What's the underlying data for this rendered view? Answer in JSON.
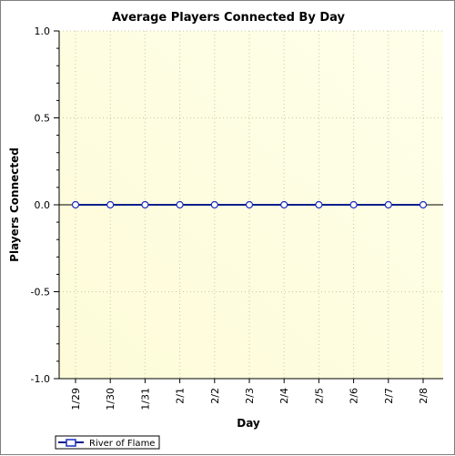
{
  "chart_data": {
    "type": "line",
    "title": "Average Players Connected By Day",
    "xlabel": "Day",
    "ylabel": "Players Connected",
    "categories": [
      "1/29",
      "1/30",
      "1/31",
      "2/1",
      "2/2",
      "2/3",
      "2/4",
      "2/5",
      "2/6",
      "2/7",
      "2/8"
    ],
    "series": [
      {
        "name": "River of Flame",
        "values": [
          0,
          0,
          0,
          0,
          0,
          0,
          0,
          0,
          0,
          0,
          0
        ]
      }
    ],
    "ylim": [
      -1.0,
      1.0
    ],
    "yticks": [
      1.0,
      0.5,
      0.0,
      -0.5,
      -1.0
    ],
    "ytick_labels": [
      "1.0",
      "0.5",
      "0.0",
      "-0.5",
      "-1.0"
    ],
    "grid": true,
    "legend_position": "bottom-left",
    "colors": {
      "series_line": "#0b1f8c",
      "marker_fill": "#ffffff",
      "marker_stroke": "#1a2bbd",
      "zero_line": "#000000",
      "plot_bg_left": "#fdfbd8",
      "plot_bg_right": "#ffffea",
      "grid": "#c8c8a0"
    }
  }
}
